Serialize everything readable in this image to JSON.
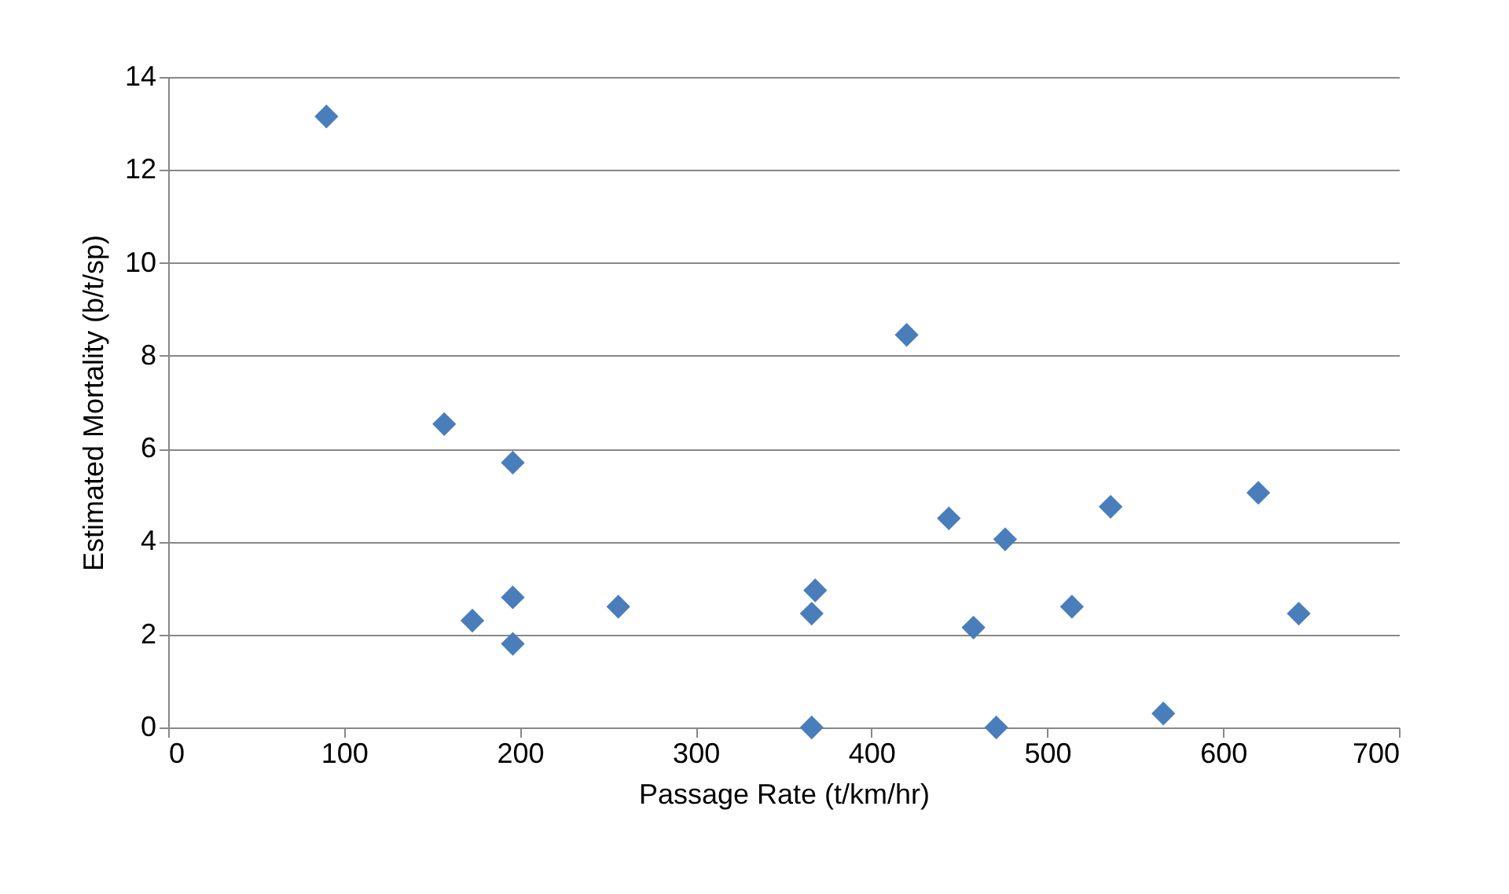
{
  "chart_data": {
    "type": "scatter",
    "xlabel": "Passage Rate (t/km/hr)",
    "ylabel": "Estimated Mortality (b/t/sp)",
    "x": [
      90,
      157,
      196,
      173,
      196,
      196,
      256,
      368,
      366,
      366,
      420,
      444,
      458,
      476,
      471,
      514,
      536,
      566,
      620,
      643
    ],
    "series": [
      {
        "color": "#4a7ebb",
        "values": [
          13.15,
          6.53,
          5.7,
          2.3,
          2.8,
          1.8,
          2.6,
          2.95,
          2.45,
          0,
          8.45,
          4.5,
          2.15,
          4.05,
          0,
          2.6,
          4.75,
          0.3,
          5.05,
          2.45
        ]
      }
    ],
    "xlim": [
      0,
      700
    ],
    "xticks": [
      0,
      100,
      200,
      300,
      400,
      500,
      600,
      700
    ],
    "ylim": [
      0,
      14
    ],
    "yticks": [
      0,
      2,
      4,
      6,
      8,
      10,
      12,
      14
    ],
    "grid": "y",
    "marker": "diamond"
  }
}
